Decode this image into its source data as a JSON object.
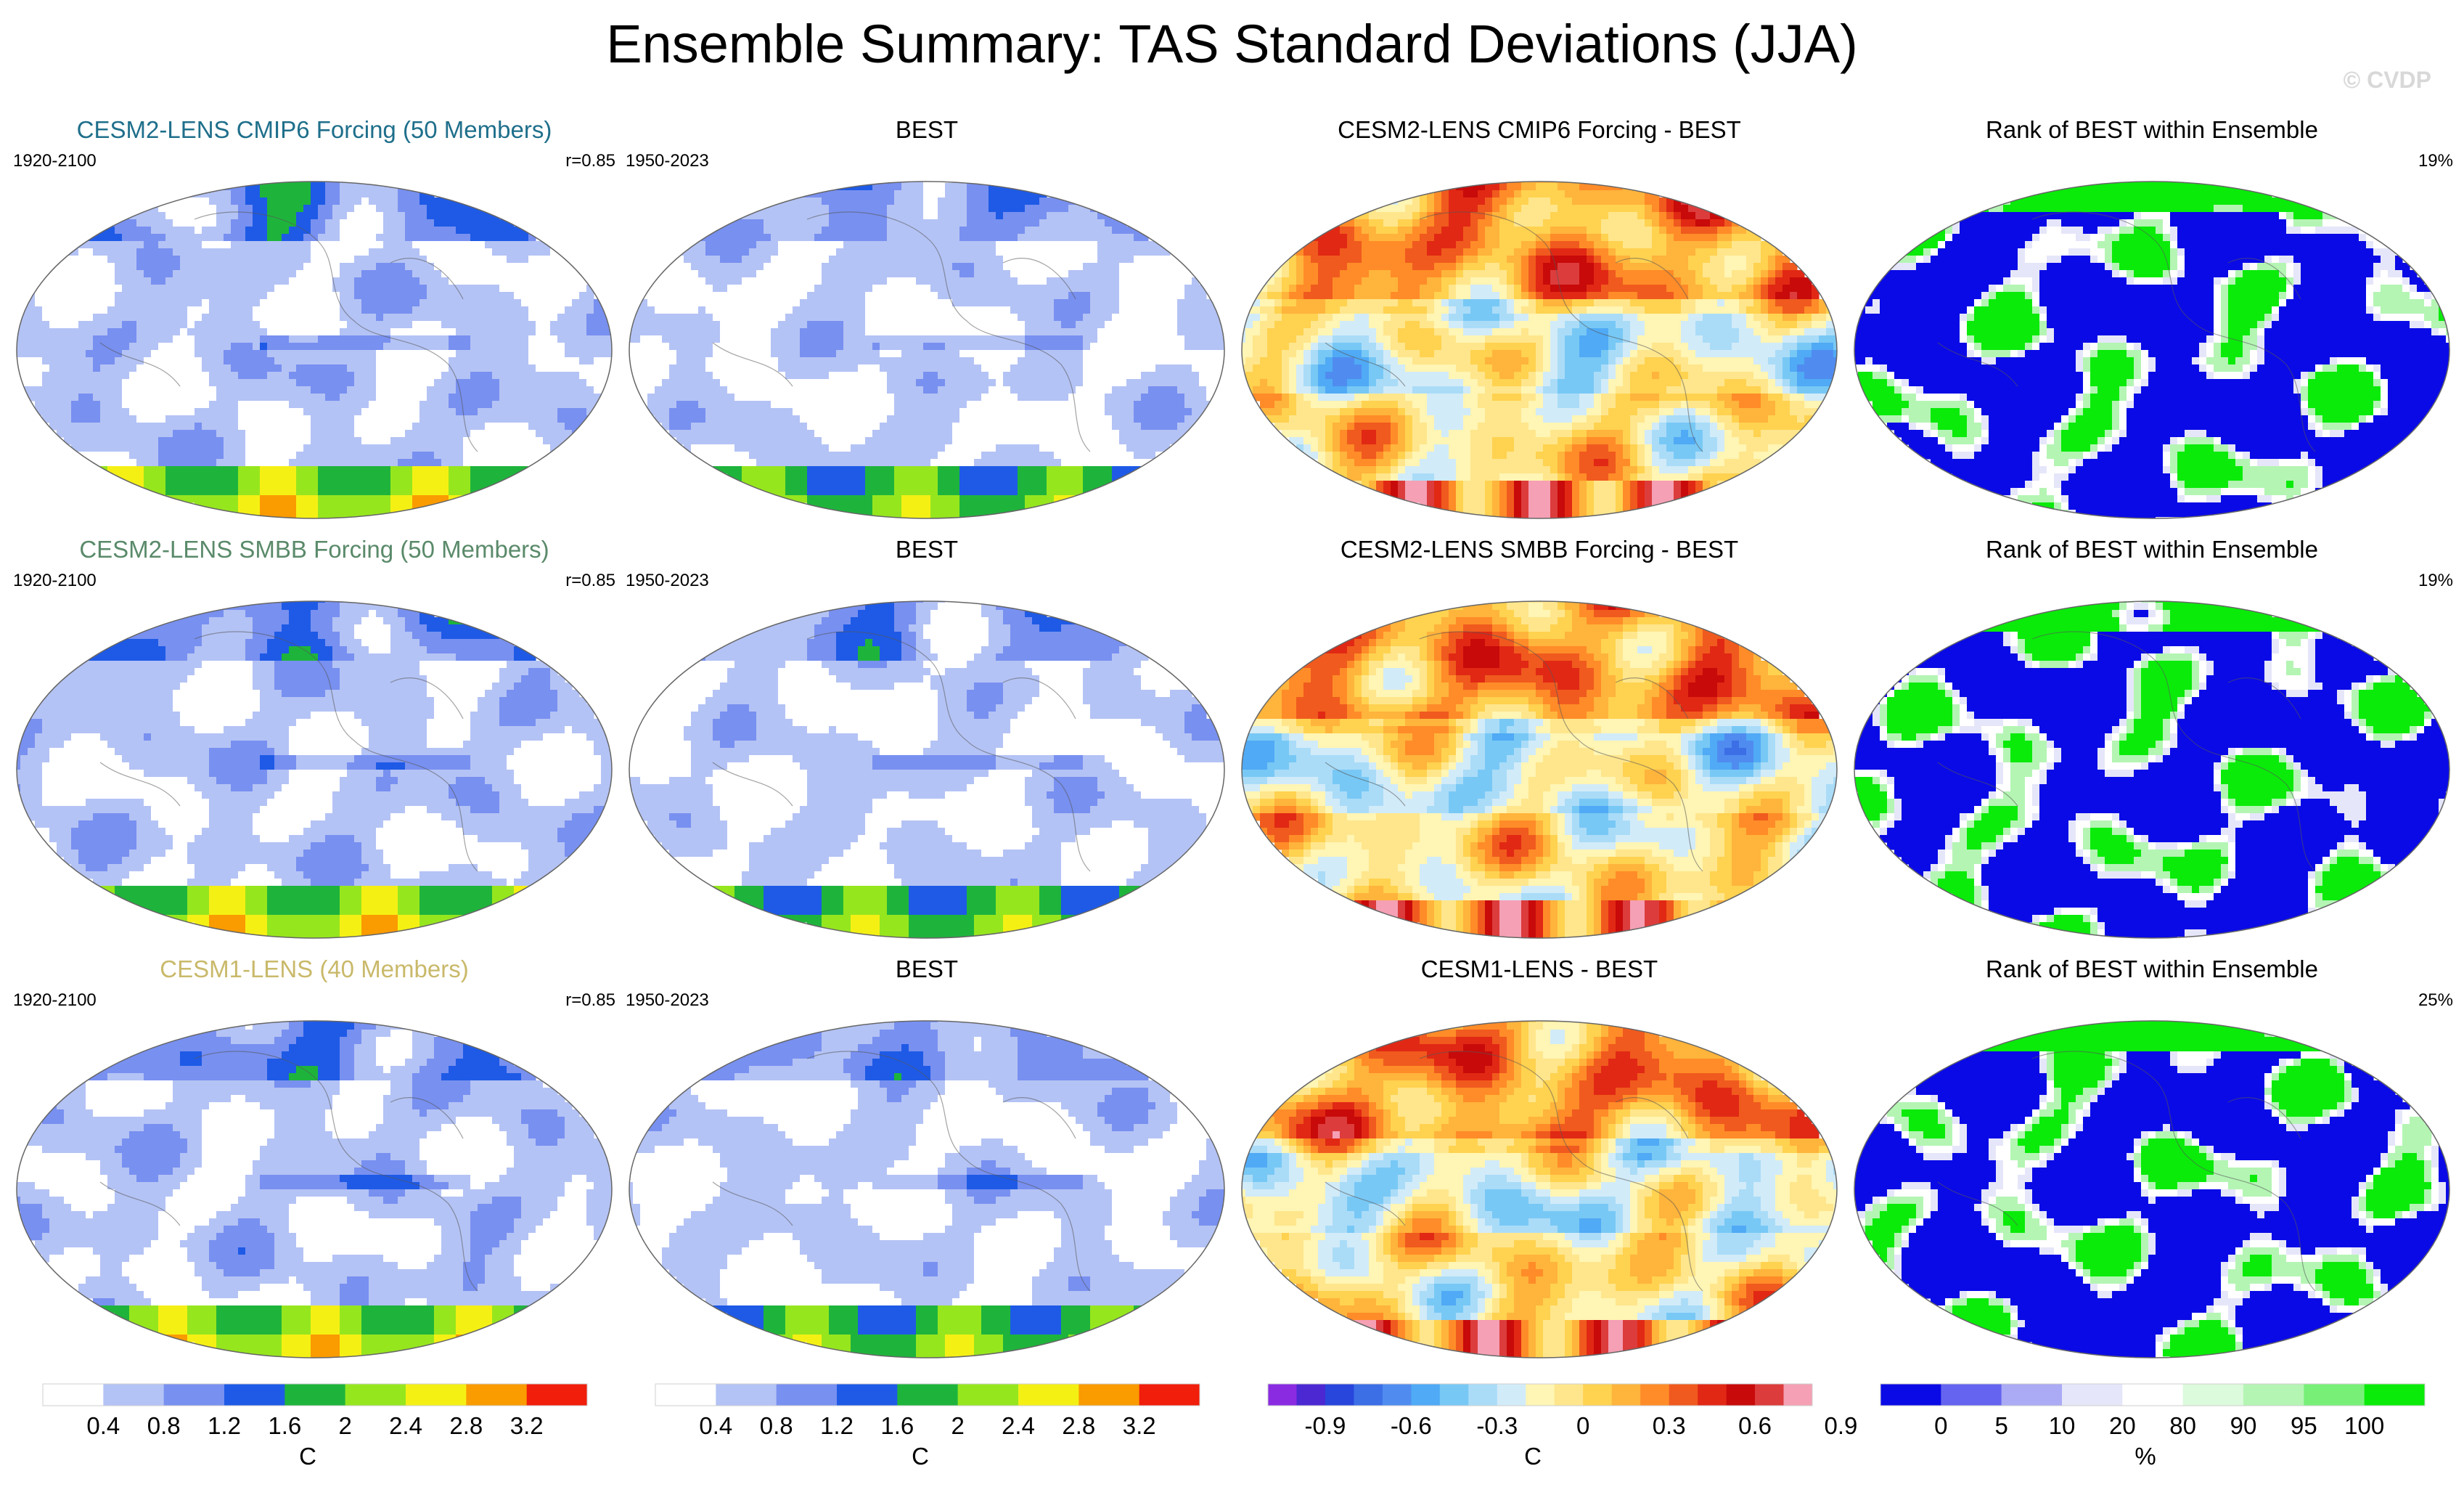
{
  "title": "Ensemble Summary: TAS Standard Deviations (JJA)",
  "watermark": "© CVDP",
  "rows": [
    {
      "model": {
        "title": "CESM2-LENS CMIP6 Forcing (50 Members)",
        "years": "1920-2100",
        "corr": "r=0.85",
        "title_color": "#1f6f8b"
      },
      "obs": {
        "title": "BEST",
        "years": "1950-2023"
      },
      "diff": {
        "title": "CESM2-LENS CMIP6 Forcing - BEST"
      },
      "rank": {
        "title": "Rank of BEST within Ensemble",
        "pct": "19%"
      }
    },
    {
      "model": {
        "title": "CESM2-LENS SMBB Forcing (50 Members)",
        "years": "1920-2100",
        "corr": "r=0.85",
        "title_color": "#5a8a6a"
      },
      "obs": {
        "title": "BEST",
        "years": "1950-2023"
      },
      "diff": {
        "title": "CESM2-LENS SMBB Forcing - BEST"
      },
      "rank": {
        "title": "Rank of BEST within Ensemble",
        "pct": "19%"
      }
    },
    {
      "model": {
        "title": "CESM1-LENS (40 Members)",
        "years": "1920-2100",
        "corr": "r=0.85",
        "title_color": "#c9b96a"
      },
      "obs": {
        "title": "BEST",
        "years": "1950-2023"
      },
      "diff": {
        "title": "CESM1-LENS - BEST"
      },
      "rank": {
        "title": "Rank of BEST within Ensemble",
        "pct": "25%"
      }
    }
  ],
  "colorbars": {
    "std": {
      "unit": "C",
      "labels": [
        "0.4",
        "0.8",
        "1.2",
        "1.6",
        "2",
        "2.4",
        "2.8",
        "3.2"
      ],
      "colors": [
        "#ffffff",
        "#b4c3f5",
        "#7890f0",
        "#1e5ae6",
        "#1eb43c",
        "#96e61e",
        "#f5f014",
        "#fa9b00",
        "#f01e0a"
      ]
    },
    "diff": {
      "unit": "C",
      "labels": [
        "-0.9",
        "-0.6",
        "-0.3",
        "0",
        "0.3",
        "0.6",
        "0.9"
      ],
      "colors": [
        "#8a2be2",
        "#4b28d2",
        "#2846dc",
        "#3c6ee6",
        "#508cf0",
        "#50aaf5",
        "#78c8f5",
        "#aadcf8",
        "#d2ebf8",
        "#fff5b4",
        "#ffe68c",
        "#ffd250",
        "#ffb43c",
        "#ff8c28",
        "#f05a1e",
        "#e12814",
        "#c80a0a",
        "#dc3c3c",
        "#f5a0b4"
      ]
    },
    "rank": {
      "unit": "%",
      "labels": [
        "0",
        "5",
        "10",
        "20",
        "80",
        "90",
        "95",
        "100"
      ],
      "colors": [
        "#0a0ae6",
        "#6464f0",
        "#aaaaf5",
        "#e6e6fa",
        "#ffffff",
        "#dcfadc",
        "#b4f5b4",
        "#78f078",
        "#0aeb0a"
      ]
    }
  }
}
